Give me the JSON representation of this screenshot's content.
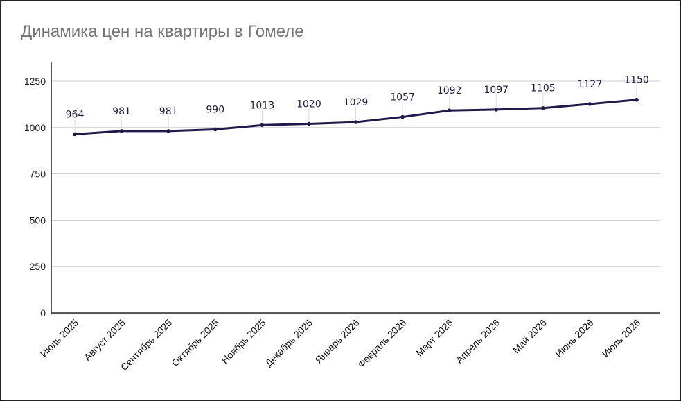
{
  "chart_data": {
    "type": "line",
    "title": "Динамика цен на квартиры в Гомеле",
    "xlabel": "",
    "ylabel": "",
    "categories": [
      "Июль 2025",
      "Август 2025",
      "Сентябрь 2025",
      "Октябрь 2025",
      "Ноябрь 2025",
      "Декабрь 2025",
      "Январь 2026",
      "Февраль 2026",
      "Март 2026",
      "Апрель 2026",
      "Май 2026",
      "Июнь 2026",
      "Июль 2026"
    ],
    "series": [
      {
        "values": [
          964,
          981,
          981,
          990,
          1013,
          1020,
          1029,
          1057,
          1092,
          1097,
          1105,
          1127,
          1150
        ],
        "color": "#1f1a4a"
      }
    ],
    "ylim": [
      0,
      1350
    ],
    "yticks": [
      0,
      250,
      500,
      750,
      1000,
      1250
    ],
    "grid": true,
    "legend": "none",
    "data_labels": true
  }
}
